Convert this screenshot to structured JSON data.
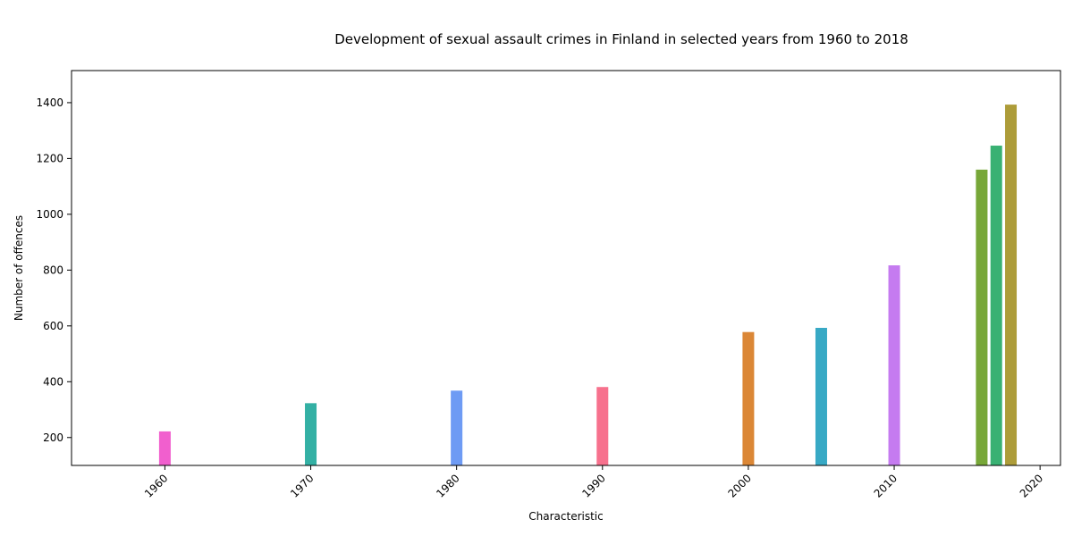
{
  "chart_data": {
    "type": "bar",
    "title": "Development of sexual assault crimes in Finland in selected years from 1960 to 2018",
    "xlabel": "Characteristic",
    "ylabel": "Number of offences",
    "xlim": [
      1953.6,
      2021.4
    ],
    "ylim": [
      100,
      1515
    ],
    "x_ticks": [
      1960,
      1970,
      1980,
      1990,
      2000,
      2010,
      2020
    ],
    "y_ticks": [
      200,
      400,
      600,
      800,
      1000,
      1200,
      1400
    ],
    "grid": false,
    "legend": "none",
    "bars": [
      {
        "x": 1960,
        "value": 222,
        "color": "#f15fce"
      },
      {
        "x": 1970,
        "value": 323,
        "color": "#33b0a4"
      },
      {
        "x": 1980,
        "value": 368,
        "color": "#6e9bf4"
      },
      {
        "x": 1990,
        "value": 381,
        "color": "#f7718d"
      },
      {
        "x": 2000,
        "value": 578,
        "color": "#db8736"
      },
      {
        "x": 2005,
        "value": 593,
        "color": "#38a9c5"
      },
      {
        "x": 2010,
        "value": 817,
        "color": "#c57bf0"
      },
      {
        "x": 2016,
        "value": 1160,
        "color": "#77a738"
      },
      {
        "x": 2017,
        "value": 1246,
        "color": "#39b173"
      },
      {
        "x": 2018,
        "value": 1393,
        "color": "#ad9c39"
      }
    ]
  }
}
